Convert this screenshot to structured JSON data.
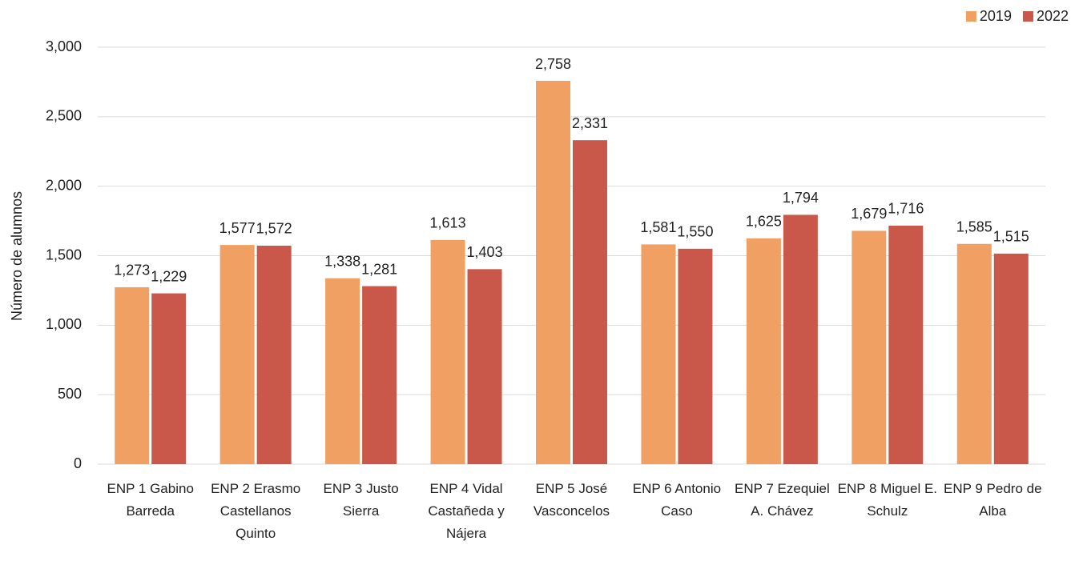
{
  "chart_data": {
    "type": "bar",
    "y_label": "Número de alumnos",
    "categories": [
      "ENP 1 Gabino Barreda",
      "ENP 2 Erasmo Castellanos Quinto",
      "ENP 3 Justo Sierra",
      "ENP 4 Vidal Castañeda y Nájera",
      "ENP 5 José Vasconcelos",
      "ENP 6 Antonio Caso",
      "ENP 7 Ezequiel A. Chávez",
      "ENP 8 Miguel E. Schulz",
      "ENP 9 Pedro de Alba"
    ],
    "series": [
      {
        "name": "2019",
        "color": "#f0a063",
        "values": [
          1273,
          1577,
          1338,
          1613,
          2758,
          1581,
          1625,
          1679,
          1585
        ],
        "value_labels": [
          "1,273",
          "1,577",
          "1,338",
          "1,613",
          "2,758",
          "1,581",
          "1,625",
          "1,679",
          "1,585"
        ]
      },
      {
        "name": "2022",
        "color": "#c9574a",
        "values": [
          1229,
          1572,
          1281,
          1403,
          2331,
          1550,
          1794,
          1716,
          1515
        ],
        "value_labels": [
          "1,229",
          "1,572",
          "1,281",
          "1,403",
          "2,331",
          "1,550",
          "1,794",
          "1,716",
          "1,515"
        ]
      }
    ],
    "ylim": [
      0,
      3000
    ],
    "yticks": [
      0,
      500,
      {
        "value": 1000,
        "label": "1,000"
      },
      {
        "value": 1500,
        "label": "1,500"
      },
      {
        "value": 2000,
        "label": "2,000"
      },
      {
        "value": 2500,
        "label": "2,500"
      },
      {
        "value": 3000,
        "label": "3,000"
      }
    ],
    "grid": true,
    "legend": "top-right"
  }
}
